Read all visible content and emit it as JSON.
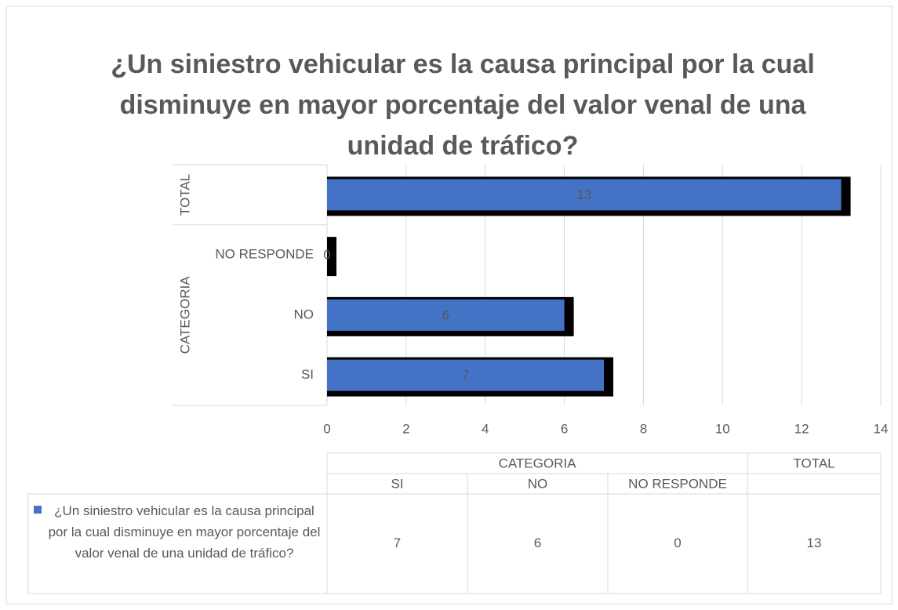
{
  "chart_data": {
    "type": "bar",
    "orientation": "horizontal",
    "title": "¿Un siniestro vehicular es la causa principal por la cual disminuye en mayor porcentaje del valor venal de una unidad de tráfico?",
    "categories": [
      "SI",
      "NO",
      "NO RESPONDE",
      null
    ],
    "groups": [
      {
        "name": "CATEGORIA",
        "size": 3
      },
      {
        "name": "TOTAL",
        "size": 1
      }
    ],
    "series": [
      {
        "name": "¿Un siniestro vehicular es la causa principal por la cual disminuye en mayor porcentaje del valor venal de una unidad de tráfico?",
        "color": "#4472c4",
        "values": [
          7,
          6,
          0,
          13
        ]
      }
    ],
    "xlim": [
      0,
      14
    ],
    "xticks": [
      0,
      2,
      4,
      6,
      8,
      10,
      12,
      14
    ],
    "grid": true,
    "data_labels": true,
    "data_table": true
  }
}
